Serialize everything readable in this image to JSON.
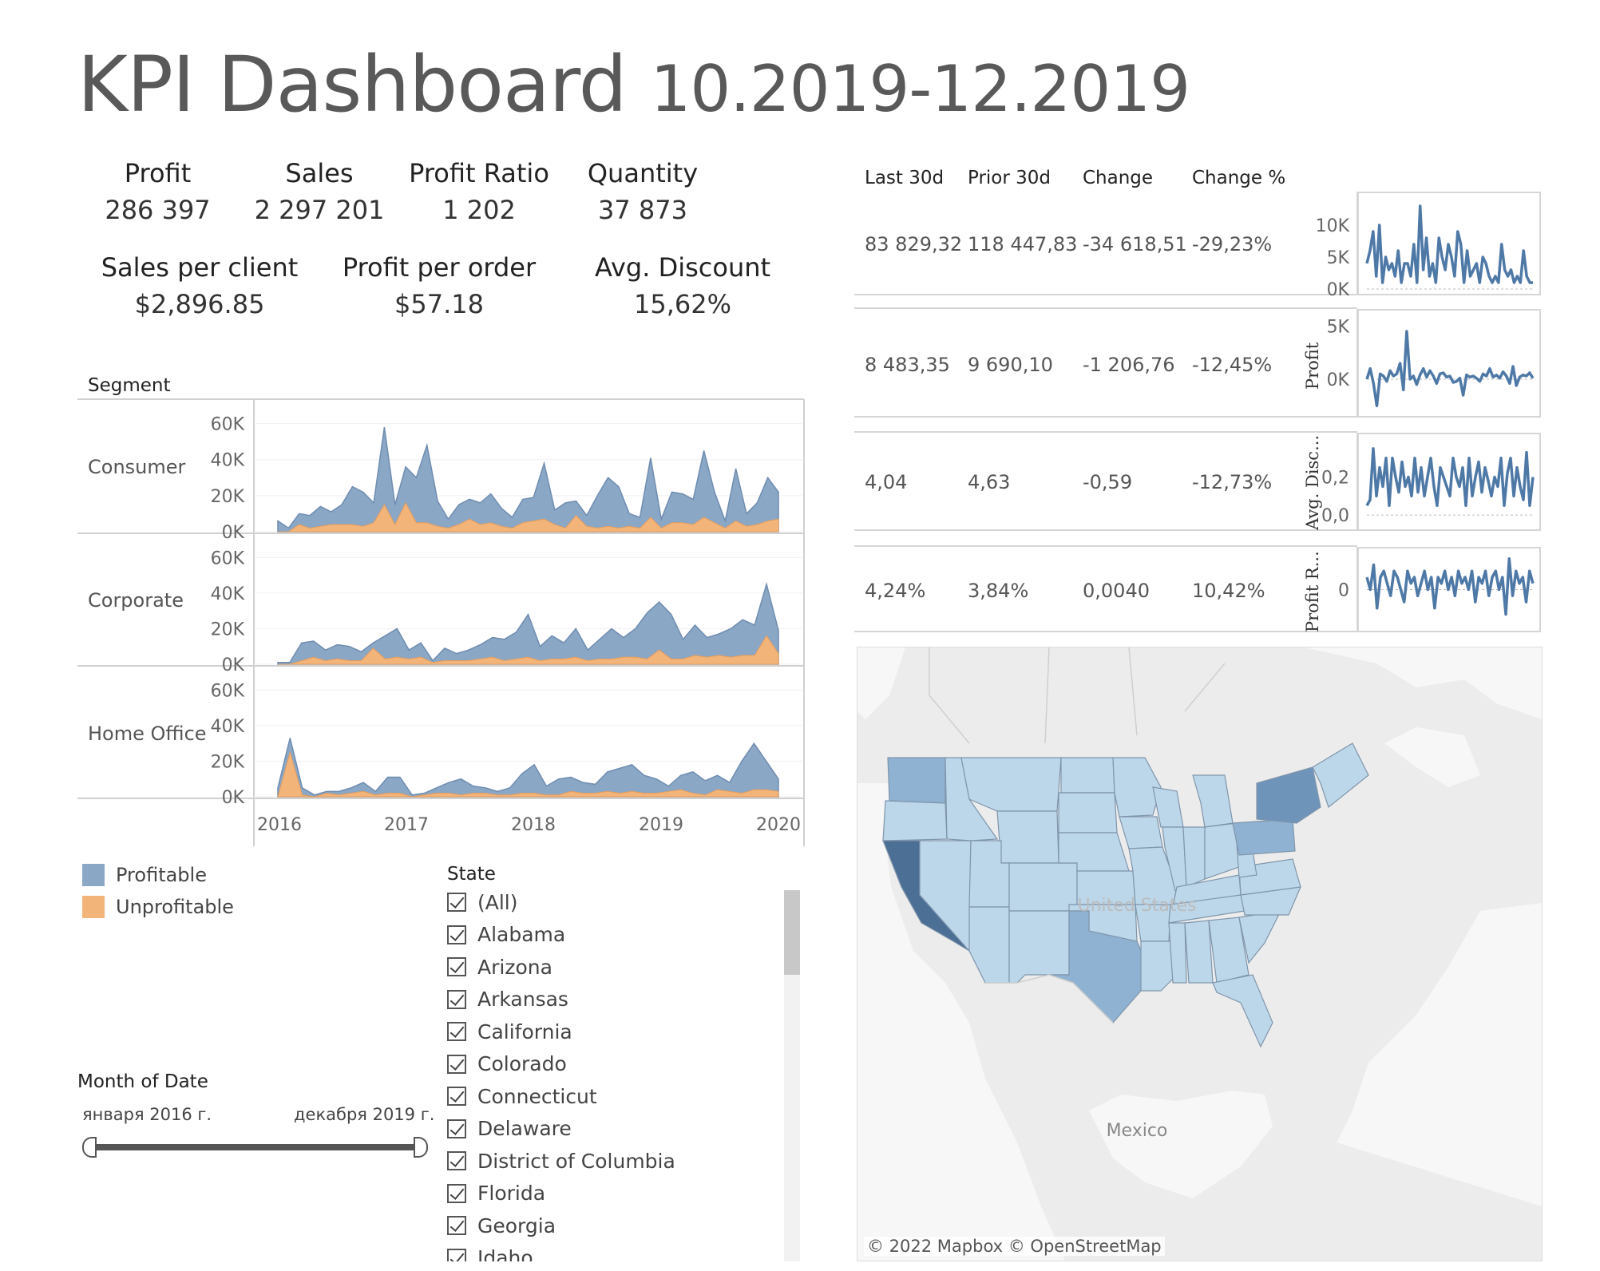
{
  "title": {
    "main": "KPI Dashboard",
    "range": "10.2019-12.2019"
  },
  "kpis": [
    {
      "label": "Profit",
      "value": "286 397"
    },
    {
      "label": "Sales",
      "value": "2 297 201"
    },
    {
      "label": "Profit Ratio",
      "value": "1 202"
    },
    {
      "label": "Quantity",
      "value": "37 873"
    },
    {
      "label": "Sales per client",
      "value": "$2,896.85"
    },
    {
      "label": "Profit per order",
      "value": "$57.18"
    },
    {
      "label": "Avg. Discount",
      "value": "15,62%"
    }
  ],
  "segment_chart": {
    "header": "Segment",
    "segments": [
      "Consumer",
      "Corporate",
      "Home Office"
    ],
    "y_ticks": [
      "60K",
      "40K",
      "20K",
      "0K"
    ],
    "x_ticks": [
      "2016",
      "2017",
      "2018",
      "2019",
      "2020"
    ],
    "legend": [
      {
        "label": "Profitable",
        "color": "#8aa7c6"
      },
      {
        "label": "Unprofitable",
        "color": "#f3b47a"
      }
    ]
  },
  "chart_data": [
    {
      "type": "area",
      "xlim": [
        2016,
        2020
      ],
      "ylim": [
        0,
        70000
      ],
      "x_month_index_start": "2016-01",
      "series_order": [
        "Profitable",
        "Unprofitable"
      ],
      "segments": [
        {
          "name": "Consumer",
          "profitable": [
            6000,
            2000,
            10000,
            9000,
            14000,
            11000,
            15000,
            25000,
            22000,
            16000,
            58000,
            15000,
            36000,
            30000,
            48000,
            17000,
            7000,
            15000,
            18000,
            16000,
            21000,
            13000,
            8000,
            18000,
            19000,
            38000,
            12000,
            16000,
            17000,
            9000,
            20000,
            30000,
            25000,
            10000,
            8000,
            41000,
            7000,
            22000,
            21000,
            18000,
            45000,
            22000,
            6000,
            35000,
            10000,
            16000,
            30000,
            22000
          ],
          "unprofitable": [
            0,
            0,
            4000,
            2000,
            3000,
            4000,
            4000,
            4000,
            3000,
            5000,
            15000,
            4000,
            16000,
            5000,
            5000,
            3000,
            2000,
            4000,
            7000,
            4000,
            5000,
            3000,
            2000,
            5000,
            6000,
            7000,
            4000,
            2000,
            9000,
            3000,
            2000,
            3000,
            2000,
            3000,
            2000,
            8000,
            2000,
            5000,
            5000,
            4000,
            8000,
            5000,
            2000,
            6000,
            3000,
            4000,
            6000,
            7000
          ]
        },
        {
          "name": "Corporate",
          "profitable": [
            1000,
            1000,
            12000,
            13000,
            8000,
            11000,
            10000,
            7000,
            12000,
            16000,
            20000,
            8000,
            12000,
            2000,
            9000,
            6000,
            8000,
            11000,
            15000,
            14000,
            18000,
            28000,
            10000,
            16000,
            12000,
            20000,
            8000,
            14000,
            20000,
            15000,
            20000,
            29000,
            35000,
            28000,
            14000,
            22000,
            15000,
            17000,
            20000,
            25000,
            22000,
            45000,
            19000
          ],
          "unprofitable": [
            0,
            0,
            2000,
            4000,
            2000,
            3000,
            2000,
            2000,
            9000,
            3000,
            4000,
            3000,
            4000,
            1000,
            2000,
            2000,
            2000,
            3000,
            4000,
            2000,
            3000,
            4000,
            2000,
            3000,
            3000,
            4000,
            2000,
            3000,
            3000,
            4000,
            4000,
            3000,
            8000,
            3000,
            3000,
            5000,
            4000,
            5000,
            4000,
            5000,
            5000,
            16000,
            6000
          ]
        },
        {
          "name": "Home Office",
          "profitable": [
            5000,
            33000,
            5000,
            1000,
            3000,
            3000,
            5000,
            8000,
            3000,
            11000,
            11000,
            1000,
            2000,
            5000,
            8000,
            10000,
            6000,
            5000,
            3000,
            5000,
            13000,
            18000,
            6000,
            10000,
            11000,
            8000,
            7000,
            14000,
            16000,
            18000,
            12000,
            10000,
            6000,
            12000,
            14000,
            9000,
            12000,
            8000,
            20000,
            30000,
            20000,
            10000
          ],
          "unprofitable": [
            0,
            25000,
            1000,
            0,
            2000,
            1000,
            2000,
            3000,
            1000,
            2000,
            2000,
            0,
            1000,
            2000,
            2000,
            1000,
            2000,
            2000,
            1000,
            1000,
            2000,
            2000,
            1000,
            1000,
            3000,
            2000,
            2000,
            3000,
            2000,
            3000,
            2000,
            2000,
            3000,
            4000,
            2000,
            1000,
            4000,
            3000,
            2000,
            4000,
            4000,
            3000
          ]
        }
      ]
    },
    {
      "type": "table",
      "columns": [
        "Last 30d",
        "Prior 30d",
        "Change",
        "Change %"
      ],
      "rows": [
        {
          "values": [
            "83 829,32",
            "118 447,83",
            "-34 618,51",
            "-29,23%"
          ],
          "spark_label": "",
          "spark_ticks": [
            "10K",
            "5K",
            "0K"
          ]
        },
        {
          "values": [
            "8 483,35",
            "9 690,10",
            "-1 206,76",
            "-12,45%"
          ],
          "spark_label": "Profit",
          "spark_ticks": [
            "5K",
            "0K"
          ]
        },
        {
          "values": [
            "4,04",
            "4,63",
            "-0,59",
            "-12,73%"
          ],
          "spark_label": "Avg. Disc...",
          "spark_ticks": [
            "0,2",
            "0,0"
          ]
        },
        {
          "values": [
            "4,24%",
            "3,84%",
            "0,0040",
            "10,42%"
          ],
          "spark_label": "Profit R...",
          "spark_ticks": [
            "0"
          ]
        }
      ]
    },
    {
      "type": "line",
      "name": "sales-sparkline",
      "ylim": [
        0,
        14000
      ],
      "values": [
        4000,
        6000,
        9000,
        2000,
        10000,
        1000,
        5000,
        3000,
        4000,
        2000,
        6000,
        1000,
        4000,
        4000,
        2000,
        7000,
        1000,
        13000,
        3000,
        8000,
        2000,
        4000,
        1000,
        8000,
        5000,
        3000,
        7000,
        5000,
        2000,
        9000,
        7000,
        1000,
        6000,
        2000,
        3000,
        4000,
        1000,
        5000,
        4000,
        2000,
        1000,
        2000,
        1000,
        7000,
        3000,
        2000,
        3000,
        1000,
        2000,
        1000,
        6000,
        2000,
        1000,
        1000
      ]
    },
    {
      "type": "line",
      "name": "profit-sparkline",
      "ylim": [
        -3000,
        6000
      ],
      "values": [
        0,
        1000,
        -400,
        -2500,
        500,
        300,
        -200,
        800,
        300,
        500,
        1500,
        -1000,
        4500,
        0,
        300,
        -500,
        400,
        1000,
        200,
        800,
        300,
        -400,
        500,
        600,
        200,
        300,
        -300,
        -200,
        100,
        -1500,
        400,
        200,
        300,
        100,
        -200,
        500,
        300,
        1000,
        200,
        400,
        100,
        700,
        300,
        -400,
        1200,
        -600,
        200,
        400,
        300,
        600,
        100
      ]
    },
    {
      "type": "line",
      "name": "avg-discount-sparkline",
      "ylim": [
        -0.05,
        0.4
      ],
      "values": [
        0.05,
        0.08,
        0.35,
        0.1,
        0.25,
        0.15,
        0.3,
        0.05,
        0.3,
        0.2,
        0.12,
        0.28,
        0.15,
        0.2,
        0.1,
        0.3,
        0.12,
        0.25,
        0.1,
        0.2,
        0.3,
        0.15,
        0.05,
        0.25,
        0.2,
        0.15,
        0.1,
        0.3,
        0.2,
        0.15,
        0.25,
        0.05,
        0.3,
        0.1,
        0.2,
        0.28,
        0.12,
        0.25,
        0.18,
        0.1,
        0.2,
        0.15,
        0.3,
        0.05,
        0.22,
        0.3,
        0.1,
        0.25,
        0.15,
        0.08,
        0.33,
        0.05,
        0.2
      ]
    },
    {
      "type": "line",
      "name": "profit-ratio-sparkline",
      "ylim": [
        -0.6,
        0.6
      ],
      "values": [
        0.2,
        0,
        0.4,
        -0.3,
        0.2,
        0.3,
        0.1,
        -0.1,
        0.3,
        0.2,
        0,
        -0.2,
        0.3,
        0.1,
        0.2,
        -0.1,
        0.1,
        0.3,
        0,
        0.2,
        -0.3,
        0.2,
        0.1,
        0.3,
        0,
        0.2,
        -0.1,
        0.3,
        0.1,
        0.2,
        0,
        0.3,
        -0.2,
        0.2,
        0.1,
        0.3,
        -0.1,
        0.2,
        0.3,
        0,
        0.2,
        -0.4,
        0.5,
        -0.1,
        0.3,
        0.1,
        0.2,
        -0.2,
        0.3,
        0.1
      ]
    }
  ],
  "date_filter": {
    "label": "Month of Date",
    "start": "января 2016 г.",
    "end": "декабря 2019 г."
  },
  "state_filter": {
    "label": "State",
    "items": [
      "(All)",
      "Alabama",
      "Arizona",
      "Arkansas",
      "California",
      "Colorado",
      "Connecticut",
      "Delaware",
      "District of Columbia",
      "Florida",
      "Georgia",
      "Idaho"
    ]
  },
  "map": {
    "labels": {
      "country_us": "United States",
      "country_mx": "Mexico"
    },
    "attribution": "© 2022 Mapbox  © OpenStreetMap",
    "colors": {
      "light": "#bdd7ea",
      "mid": "#8fb2d2",
      "dark": "#4c6f95",
      "land": "#ececec",
      "water": "#f7f7f7"
    }
  }
}
